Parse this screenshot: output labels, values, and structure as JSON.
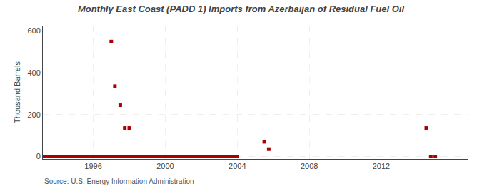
{
  "chart_data": {
    "type": "scatter",
    "title": "Monthly East Coast (PADD 1) Imports from Azerbaijan of Residual Fuel Oil",
    "y_label": "Thousand Barrels",
    "source": "Source: U.S. Energy Information Administration",
    "xlim": [
      1993.2,
      2016.8
    ],
    "ylim": [
      -12,
      625
    ],
    "xticks": [
      1996,
      2000,
      2004,
      2008,
      2012
    ],
    "yticks": [
      0,
      200,
      400,
      600
    ],
    "grid": true,
    "series": [
      {
        "type": "line",
        "line_style": "solid",
        "color": "#aa0000",
        "x": [
          1993.2,
          2004.1
        ],
        "values": [
          0,
          0
        ]
      },
      {
        "type": "scatter",
        "marker": "square",
        "color": "#aa0000",
        "x": [
          1993.5,
          1993.75,
          1994.0,
          1994.25,
          1994.5,
          1994.75,
          1995.0,
          1995.25,
          1995.5,
          1995.75,
          1996.0,
          1996.25,
          1996.5,
          1996.75,
          1997.0,
          1997.2,
          1997.5,
          1997.75,
          1998.0,
          1998.25,
          1998.5,
          1998.75,
          1999.0,
          1999.25,
          1999.5,
          1999.75,
          2000.0,
          2000.25,
          2000.5,
          2000.75,
          2001.0,
          2001.25,
          2001.5,
          2001.75,
          2002.0,
          2002.25,
          2002.5,
          2002.75,
          2003.0,
          2003.25,
          2003.5,
          2003.75,
          2004.0,
          2005.5,
          2005.75,
          2014.5,
          2014.75,
          2015.0
        ],
        "values": [
          0,
          0,
          0,
          0,
          0,
          0,
          0,
          0,
          0,
          0,
          0,
          0,
          0,
          0,
          549,
          336,
          245,
          136,
          136,
          0,
          0,
          0,
          0,
          0,
          0,
          0,
          0,
          0,
          0,
          0,
          0,
          0,
          0,
          0,
          0,
          0,
          0,
          0,
          0,
          0,
          0,
          0,
          0,
          70,
          35,
          136,
          0,
          0
        ]
      }
    ]
  }
}
